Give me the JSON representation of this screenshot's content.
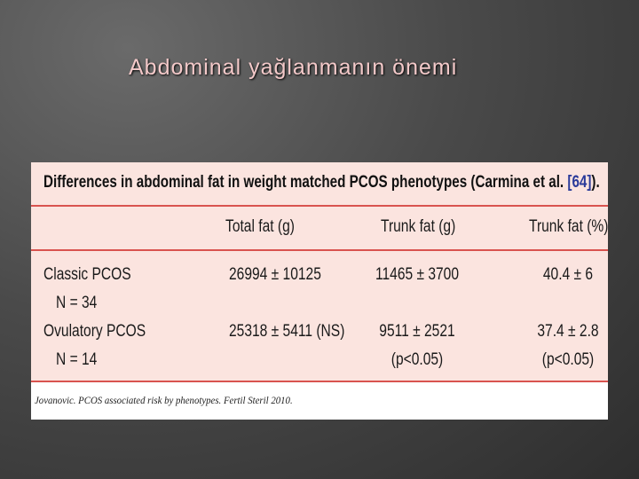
{
  "slide": {
    "title": "Abdominal yağlanmanın önemi"
  },
  "table": {
    "caption": {
      "text": "Differences in abdominal fat in weight matched PCOS phenotypes (Carmina et al. ",
      "ref": "[64]",
      "end": ")."
    },
    "headers": [
      "Total fat (g)",
      "Trunk fat (g)",
      "Trunk fat (%)"
    ],
    "rows": [
      {
        "name": [
          "Classic PCOS",
          "N = 34"
        ],
        "cells": [
          {
            "value": "26994 ± 10125"
          },
          {
            "value": "11465 ± 3700"
          },
          {
            "value": "40.4 ± 6"
          }
        ]
      },
      {
        "name": [
          "Ovulatory PCOS",
          "N = 14"
        ],
        "cells": [
          {
            "value": "25318 ± 5411 (NS)"
          },
          {
            "value": "9511 ± 2521",
            "note": "(p<0.05)"
          },
          {
            "value": "37.4 ± 2.8",
            "note": "(p<0.05)"
          }
        ]
      }
    ],
    "source": "Jovanovic. PCOS associated risk by phenotypes. Fertil Steril 2010."
  }
}
